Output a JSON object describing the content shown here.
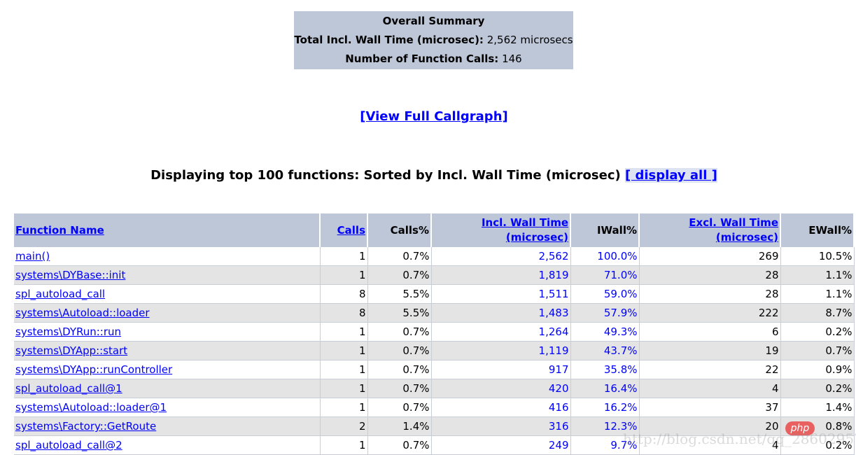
{
  "summary": {
    "title": "Overall Summary",
    "wall_label": "Total Incl. Wall Time (microsec):",
    "wall_value": "2,562 microsecs",
    "calls_label": "Number of Function Calls:",
    "calls_value": "146"
  },
  "callgraph_link": "[View Full Callgraph]",
  "display": {
    "text": "Displaying top 100 functions: Sorted by Incl. Wall Time (microsec)",
    "link": "[ display all ]"
  },
  "headers": [
    "Function Name",
    "Calls",
    "Calls%",
    "Incl. Wall Time (microsec)",
    "IWall%",
    "Excl. Wall Time (microsec)",
    "EWall%"
  ],
  "rows": [
    [
      "main()",
      "1",
      "0.7%",
      "2,562",
      "100.0%",
      "269",
      "10.5%"
    ],
    [
      "systems\\DYBase::init",
      "1",
      "0.7%",
      "1,819",
      "71.0%",
      "28",
      "1.1%"
    ],
    [
      "spl_autoload_call",
      "8",
      "5.5%",
      "1,511",
      "59.0%",
      "28",
      "1.1%"
    ],
    [
      "systems\\Autoload::loader",
      "8",
      "5.5%",
      "1,483",
      "57.9%",
      "222",
      "8.7%"
    ],
    [
      "systems\\DYRun::run",
      "1",
      "0.7%",
      "1,264",
      "49.3%",
      "6",
      "0.2%"
    ],
    [
      "systems\\DYApp::start",
      "1",
      "0.7%",
      "1,119",
      "43.7%",
      "19",
      "0.7%"
    ],
    [
      "systems\\DYApp::runController",
      "1",
      "0.7%",
      "917",
      "35.8%",
      "22",
      "0.9%"
    ],
    [
      "spl_autoload_call@1",
      "1",
      "0.7%",
      "420",
      "16.4%",
      "4",
      "0.2%"
    ],
    [
      "systems\\Autoload::loader@1",
      "1",
      "0.7%",
      "416",
      "16.2%",
      "37",
      "1.4%"
    ],
    [
      "systems\\Factory::GetRoute",
      "2",
      "1.4%",
      "316",
      "12.3%",
      "20",
      "0.8%"
    ],
    [
      "spl_autoload_call@2",
      "1",
      "0.7%",
      "249",
      "9.7%",
      "4",
      "0.2%"
    ]
  ],
  "watermark": "http://blog.csdn.net/qq_28602957",
  "php_badge": "php"
}
